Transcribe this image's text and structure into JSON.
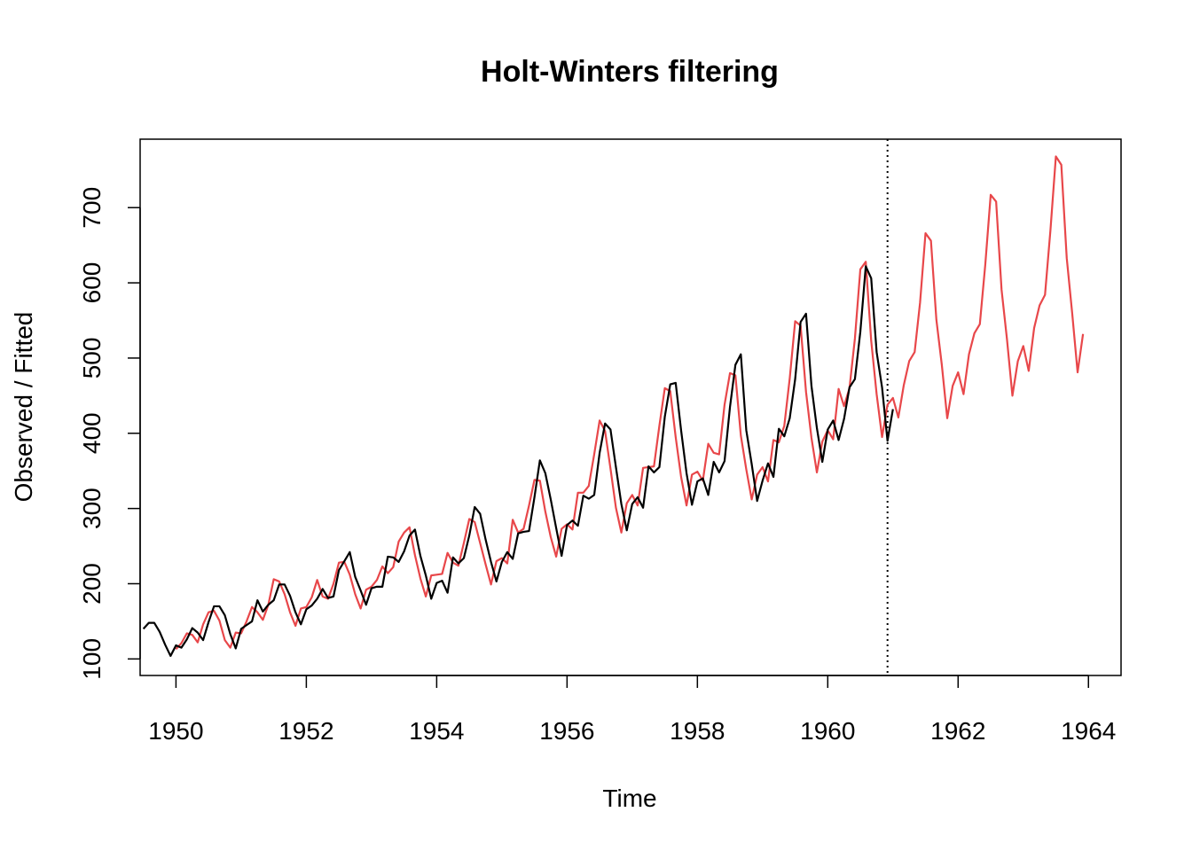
{
  "chart_data": {
    "type": "line",
    "title": "Holt-Winters filtering",
    "xlabel": "Time",
    "ylabel": "Observed / Fitted",
    "xlim": [
      1949.45,
      1964.5
    ],
    "ylim": [
      78,
      791
    ],
    "x_ticks": [
      1950,
      1952,
      1954,
      1956,
      1958,
      1960,
      1962,
      1964
    ],
    "y_ticks": [
      100,
      200,
      300,
      400,
      500,
      600,
      700
    ],
    "grid": false,
    "legend": "none",
    "forecast_start_marker": 1960.917,
    "colors": {
      "observed": "#000000",
      "fitted": "#e8474a",
      "axis": "#000000"
    },
    "series": [
      {
        "key": "observed",
        "x_start": 1949.5,
        "step": 0.0833333,
        "values": [
          140,
          148,
          148,
          136,
          119,
          104,
          118,
          115,
          126,
          141,
          135,
          125,
          149,
          170,
          170,
          158,
          133,
          114,
          140,
          145,
          150,
          178,
          163,
          172,
          178,
          199,
          199,
          184,
          162,
          146,
          166,
          171,
          180,
          193,
          181,
          183,
          218,
          230,
          242,
          209,
          191,
          172,
          194,
          196,
          196,
          236,
          235,
          229,
          243,
          264,
          272,
          237,
          211,
          180,
          201,
          204,
          188,
          235,
          227,
          234,
          264,
          302,
          293,
          259,
          229,
          203,
          229,
          242,
          233,
          267,
          269,
          270,
          315,
          364,
          347,
          312,
          274,
          237,
          278,
          284,
          277,
          317,
          313,
          318,
          374,
          413,
          405,
          355,
          306,
          271,
          306,
          315,
          301,
          356,
          348,
          355,
          422,
          465,
          467,
          404,
          347,
          305,
          336,
          340,
          318,
          362,
          348,
          363,
          435,
          491,
          505,
          404,
          359,
          310,
          337,
          360,
          342,
          406,
          396,
          420,
          472,
          548,
          559,
          463,
          407,
          362,
          405,
          417,
          391,
          419,
          461,
          472,
          535,
          622,
          606,
          508,
          461,
          390,
          432
        ]
      },
      {
        "key": "fitted",
        "x_start": 1950.0,
        "step": 0.0833333,
        "values": [
          113,
          121,
          134,
          132,
          122,
          146,
          162,
          164,
          151,
          125,
          115,
          135,
          134,
          150,
          169,
          162,
          152,
          172,
          206,
          203,
          186,
          162,
          144,
          167,
          169,
          182,
          205,
          183,
          180,
          200,
          228,
          229,
          212,
          186,
          167,
          192,
          196,
          205,
          223,
          214,
          222,
          256,
          268,
          275,
          238,
          207,
          183,
          211,
          212,
          213,
          241,
          228,
          224,
          254,
          286,
          282,
          254,
          226,
          199,
          230,
          234,
          227,
          285,
          268,
          273,
          304,
          338,
          337,
          296,
          262,
          236,
          273,
          279,
          272,
          321,
          321,
          330,
          372,
          417,
          403,
          353,
          301,
          268,
          307,
          318,
          304,
          354,
          355,
          356,
          410,
          460,
          456,
          395,
          342,
          304,
          345,
          349,
          337,
          386,
          374,
          372,
          438,
          480,
          477,
          397,
          352,
          312,
          345,
          355,
          336,
          391,
          388,
          410,
          473,
          549,
          543,
          455,
          394,
          348,
          389,
          404,
          392,
          459,
          436,
          460,
          526,
          618,
          628,
          523,
          452,
          395,
          438,
          447,
          421,
          464,
          496,
          508,
          574,
          666,
          656,
          551,
          491,
          420,
          463,
          481,
          452,
          505,
          533,
          545,
          624,
          717,
          708,
          591,
          525,
          450,
          496,
          516,
          483,
          540,
          570,
          584,
          670,
          768,
          757,
          633,
          560,
          481,
          532
        ]
      }
    ]
  }
}
